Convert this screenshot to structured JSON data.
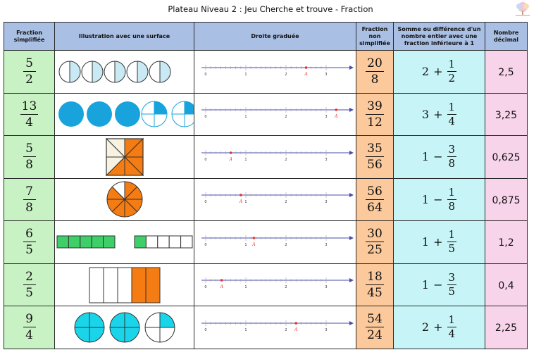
{
  "title": "Plateau Niveau 2 : Jeu Cherche et trouve - Fraction",
  "headers": {
    "simplified": "Fraction simplifiée",
    "illustration": "Illustration avec une surface",
    "number_line": "Droite graduée",
    "non_simplified": "Fraction non simplifiée",
    "sum_diff": "Somme ou différence d'un nombre entier avec une fraction inférieure à 1",
    "decimal": "Nombre décimal"
  },
  "point_label": "A",
  "colors": {
    "header": "#a9bfe3",
    "simplified": "#c8f2c4",
    "non_simplified": "#fbc99c",
    "sum_diff": "#c7f4f6",
    "decimal": "#f8d4ea",
    "fill_light_blue": "#c9eaf4",
    "fill_blue": "#19a3dc",
    "fill_orange": "#f47c12",
    "fill_cream": "#f8f3e0",
    "fill_green": "#3fcf68",
    "fill_cyan": "#1ad4ea",
    "point": "#e33232"
  },
  "rows": [
    {
      "simplified": {
        "num": "5",
        "den": "2"
      },
      "illustration": "half-circles",
      "number_line": {
        "ticks": [
          "0",
          "1",
          "2",
          "3"
        ],
        "point": 2.5
      },
      "non_simplified": {
        "num": "20",
        "den": "8"
      },
      "sum_diff": {
        "whole": "2",
        "op": "+",
        "num": "1",
        "den": "2"
      },
      "decimal": "2,5"
    },
    {
      "simplified": {
        "num": "13",
        "den": "4"
      },
      "illustration": "quarter-circles",
      "number_line": {
        "ticks": [
          "0",
          "1",
          "2",
          "3"
        ],
        "point": 3.25
      },
      "non_simplified": {
        "num": "39",
        "den": "12"
      },
      "sum_diff": {
        "whole": "3",
        "op": "+",
        "num": "1",
        "den": "4"
      },
      "decimal": "3,25"
    },
    {
      "simplified": {
        "num": "5",
        "den": "8"
      },
      "illustration": "square-eighths",
      "number_line": {
        "ticks": [
          "0",
          "1",
          "2",
          "3"
        ],
        "point": 0.625
      },
      "non_simplified": {
        "num": "35",
        "den": "56"
      },
      "sum_diff": {
        "whole": "1",
        "op": "−",
        "num": "3",
        "den": "8"
      },
      "decimal": "0,625"
    },
    {
      "simplified": {
        "num": "7",
        "den": "8"
      },
      "illustration": "circle-eighths",
      "number_line": {
        "ticks": [
          "0",
          "1",
          "2",
          "3"
        ],
        "point": 0.875
      },
      "non_simplified": {
        "num": "56",
        "den": "64"
      },
      "sum_diff": {
        "whole": "1",
        "op": "−",
        "num": "1",
        "den": "8"
      },
      "decimal": "0,875"
    },
    {
      "simplified": {
        "num": "6",
        "den": "5"
      },
      "illustration": "bar-fifths",
      "number_line": {
        "ticks": [
          "0",
          "1",
          "2",
          "3"
        ],
        "point": 1.2
      },
      "non_simplified": {
        "num": "30",
        "den": "25"
      },
      "sum_diff": {
        "whole": "1",
        "op": "+",
        "num": "1",
        "den": "5"
      },
      "decimal": "1,2"
    },
    {
      "simplified": {
        "num": "2",
        "den": "5"
      },
      "illustration": "rect-fifths",
      "number_line": {
        "ticks": [
          "0",
          "1",
          "2",
          "3"
        ],
        "point": 0.4
      },
      "non_simplified": {
        "num": "18",
        "den": "45"
      },
      "sum_diff": {
        "whole": "1",
        "op": "−",
        "num": "3",
        "den": "5"
      },
      "decimal": "0,4"
    },
    {
      "simplified": {
        "num": "9",
        "den": "4"
      },
      "illustration": "cyan-quarter-circles",
      "number_line": {
        "ticks": [
          "0",
          "1",
          "2",
          "3"
        ],
        "point": 2.25
      },
      "non_simplified": {
        "num": "54",
        "den": "24"
      },
      "sum_diff": {
        "whole": "2",
        "op": "+",
        "num": "1",
        "den": "4"
      },
      "decimal": "2,25"
    }
  ]
}
